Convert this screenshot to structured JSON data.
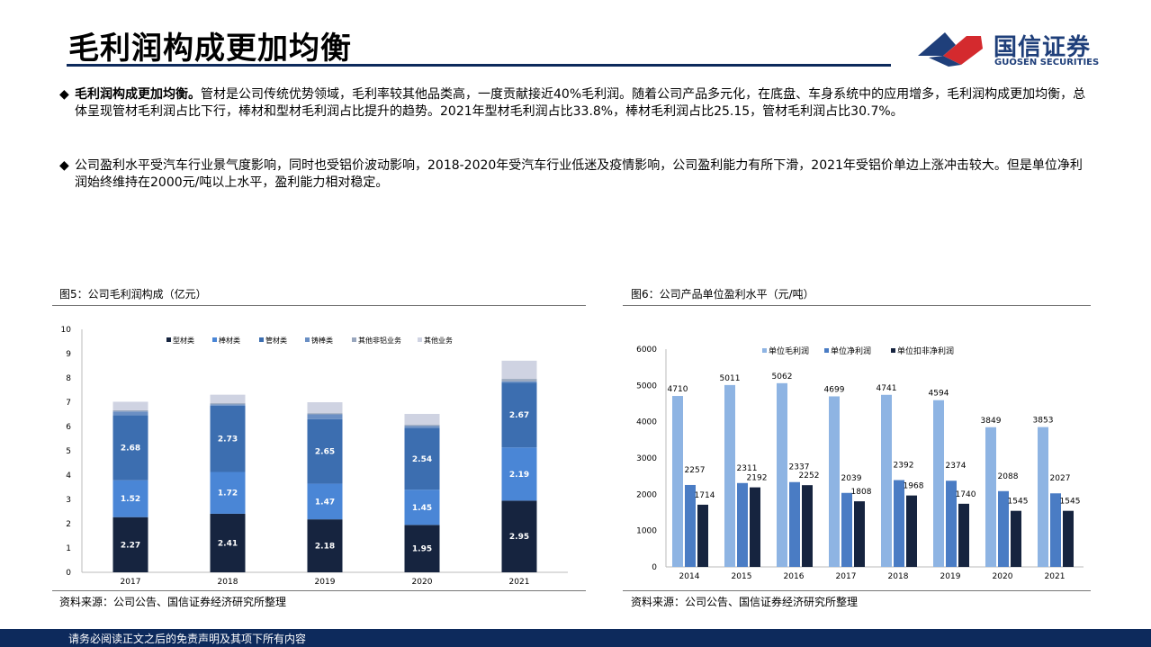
{
  "page": {
    "title": "毛利润构成更加均衡",
    "logo": {
      "cn": "国信证券",
      "en": "GUOSEN SECURITIES"
    },
    "bullets": [
      {
        "marker": "◆",
        "bold": "毛利润构成更加均衡。",
        "text": "管材是公司传统优势领域，毛利率较其他品类高，一度贡献接近40%毛利润。随着公司产品多元化，在底盘、车身系统中的应用增多，毛利润构成更加均衡，总体呈现管材毛利润占比下行，棒材和型材毛利润占比提升的趋势。2021年型材毛利润占比33.8%，棒材毛利润占比25.15，管材毛利润占比30.7%。"
      },
      {
        "marker": "◆",
        "bold": "",
        "text": "公司盈利水平受汽车行业景气度影响，同时也受铝价波动影响，2018-2020年受汽车行业低迷及疫情影响，公司盈利能力有所下滑，2021年受铝价单边上涨冲击较大。但是单位净利润始终维持在2000元/吨以上水平，盈利能力相对稳定。"
      }
    ],
    "footer": "请务必阅读正文之后的免责声明及其项下所有内容",
    "brand_colors": {
      "navy": "#0d2a5c",
      "red": "#d42a2e"
    }
  },
  "figures": [
    {
      "title": "图5：公司毛利润构成（亿元）",
      "source": "资料来源：公司公告、国信证券经济研究所整理"
    },
    {
      "title": "图6：公司产品单位盈利水平（元/吨）",
      "source": "资料来源：公司公告、国信证券经济研究所整理"
    }
  ],
  "chart_data": [
    {
      "type": "bar",
      "stacked": true,
      "categories": [
        "2017",
        "2018",
        "2019",
        "2020",
        "2021"
      ],
      "ylim": [
        0,
        10
      ],
      "yticks": [
        "0",
        "1",
        "2",
        "3",
        "4",
        "5",
        "6",
        "7",
        "8",
        "9",
        "10"
      ],
      "legend_position": "top",
      "series": [
        {
          "name": "型材类",
          "color": "#16243f",
          "values": [
            2.27,
            2.41,
            2.18,
            1.95,
            2.95
          ],
          "labels": [
            "2.27",
            "2.41",
            "2.18",
            "1.95",
            "2.95"
          ]
        },
        {
          "name": "棒材类",
          "color": "#4a86d6",
          "values": [
            1.52,
            1.72,
            1.47,
            1.45,
            2.19
          ],
          "labels": [
            "1.52",
            "1.72",
            "1.47",
            "1.45",
            "2.19"
          ]
        },
        {
          "name": "管材类",
          "color": "#3c6eb0",
          "values": [
            2.68,
            2.73,
            2.65,
            2.54,
            2.67
          ],
          "labels": [
            "2.68",
            "2.73",
            "2.65",
            "2.54",
            "2.67"
          ]
        },
        {
          "name": "铸棒类",
          "color": "#6a8fc4",
          "values": [
            0.15,
            0.05,
            0.2,
            0.08,
            0.05
          ],
          "labels": []
        },
        {
          "name": "其他非铝业务",
          "color": "#98a6bd",
          "values": [
            0.05,
            0.05,
            0.05,
            0.05,
            0.1
          ],
          "labels": []
        },
        {
          "name": "其他业务",
          "color": "#cfd3e2",
          "values": [
            0.35,
            0.35,
            0.45,
            0.45,
            0.75
          ],
          "labels": []
        }
      ]
    },
    {
      "type": "bar",
      "categories": [
        "2014",
        "2015",
        "2016",
        "2017",
        "2018",
        "2019",
        "2020",
        "2021"
      ],
      "ylim": [
        0,
        6000
      ],
      "yticks": [
        "0",
        "1000",
        "2000",
        "3000",
        "4000",
        "5000",
        "6000"
      ],
      "legend_position": "top",
      "series": [
        {
          "name": "单位毛利润",
          "color": "#8eb4e3",
          "values": [
            4710,
            5011,
            5062,
            4699,
            4741,
            4594,
            3849,
            3853
          ]
        },
        {
          "name": "单位净利润",
          "color": "#4a7cc4",
          "values": [
            2257,
            2311,
            2337,
            2039,
            2392,
            2374,
            2088,
            2027
          ]
        },
        {
          "name": "单位扣非净利润",
          "color": "#16243f",
          "values": [
            1714,
            2192,
            2252,
            1808,
            1968,
            1740,
            1545,
            1545
          ]
        }
      ]
    }
  ]
}
